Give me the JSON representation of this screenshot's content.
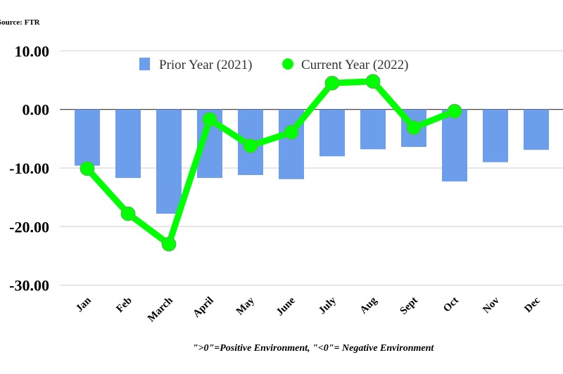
{
  "source": "Source: FTR",
  "footnote": "\">0\"=Positive Environment, \"<0\"= Negative Environment",
  "chart_data": {
    "type": "bar",
    "categories": [
      "Jan",
      "Feb",
      "March",
      "April",
      "May",
      "June",
      "July",
      "Aug",
      "Sept",
      "Oct",
      "Nov",
      "Dec"
    ],
    "series": [
      {
        "name": "Prior Year (2021)",
        "type": "bar",
        "color": "#6d9eeb",
        "values": [
          -9.6,
          -11.7,
          -17.8,
          -11.7,
          -11.2,
          -11.9,
          -8.0,
          -6.8,
          -6.4,
          -12.3,
          -9.0,
          -6.9
        ]
      },
      {
        "name": "Current Year (2022)",
        "type": "line",
        "color": "#00ff00",
        "values": [
          -10.1,
          -17.8,
          -23.0,
          -1.7,
          -6.2,
          -3.9,
          4.5,
          4.8,
          -3.1,
          -0.3,
          null,
          null
        ]
      }
    ],
    "yticks": [
      "10.00",
      "0.00",
      "-10.00",
      "-20.00",
      "-30.00"
    ],
    "ylim": [
      -30,
      10
    ],
    "grid": true,
    "legend": "top"
  }
}
